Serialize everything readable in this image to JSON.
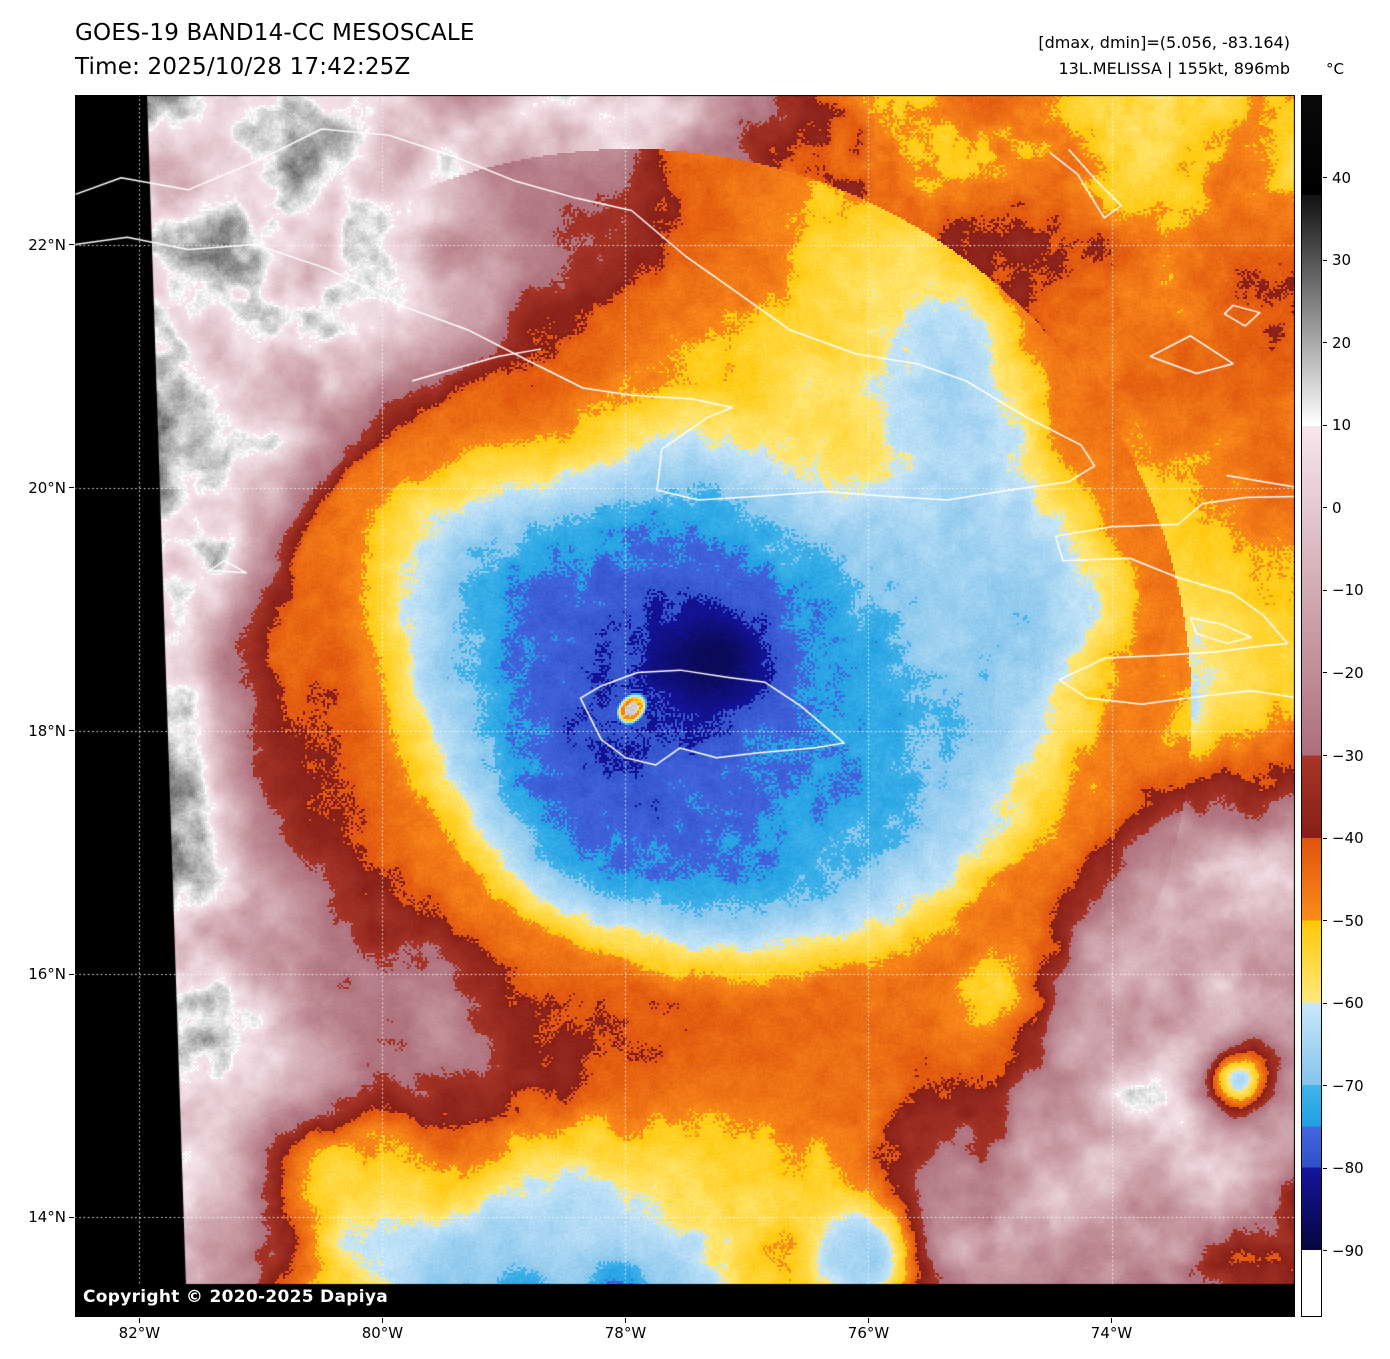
{
  "header": {
    "title_line1": "GOES-19 BAND14-CC MESOSCALE",
    "title_line2": "Time: 2025/10/28 17:42:25Z",
    "info_line1": "[dmax, dmin]=(5.056, -83.164)",
    "info_line2": "13L.MELISSA | 155kt, 896mb"
  },
  "readout": {
    "dmax": 5.056,
    "dmin": -83.164
  },
  "storm": {
    "id": "13L",
    "name": "MELISSA",
    "intensity_kt": 155,
    "pressure_mb": 896,
    "center_lon_w": 77.95,
    "center_lat_n": 18.18
  },
  "map": {
    "copyright": "Copyright © 2020-2025 Dapiya",
    "lat_labels": [
      "22°N",
      "20°N",
      "18°N",
      "16°N",
      "14°N"
    ],
    "lat_values": [
      22,
      20,
      18,
      16,
      14
    ],
    "lon_labels": [
      "82°W",
      "80°W",
      "78°W",
      "76°W",
      "74°W"
    ],
    "lon_values": [
      82,
      80,
      78,
      76,
      74
    ],
    "extent": {
      "lon_west": 82.53,
      "lon_east": 72.49,
      "lat_north": 23.23,
      "lat_south": 13.18
    }
  },
  "colorbar": {
    "unit": "°C",
    "tick_labels": [
      "40",
      "30",
      "20",
      "10",
      "0",
      "−10",
      "−20",
      "−30",
      "−40",
      "−50",
      "−60",
      "−70",
      "−80",
      "−90"
    ],
    "tick_values": [
      40,
      30,
      20,
      10,
      0,
      -10,
      -20,
      -30,
      -40,
      -50,
      -60,
      -70,
      -80,
      -90
    ],
    "top_value": 50,
    "bottom_value": -98,
    "palette": [
      {
        "from": 50,
        "to": 38,
        "c1": "#0a0a0a",
        "c2": "#000000"
      },
      {
        "from": 38,
        "to": 10,
        "c1": "#111111",
        "c2": "#ffffff"
      },
      {
        "from": 10,
        "to": -30,
        "c1": "#f7e6ec",
        "c2": "#ad6f7b"
      },
      {
        "from": -30,
        "to": -40,
        "c1": "#a83527",
        "c2": "#871f18"
      },
      {
        "from": -40,
        "to": -50,
        "c1": "#df530e",
        "c2": "#fb8c1a"
      },
      {
        "from": -50,
        "to": -60,
        "c1": "#ffc706",
        "c2": "#ffe97e"
      },
      {
        "from": -60,
        "to": -70,
        "c1": "#cbe7f9",
        "c2": "#84c4ec"
      },
      {
        "from": -70,
        "to": -75,
        "c1": "#44b4ea",
        "c2": "#1f9fe2"
      },
      {
        "from": -75,
        "to": -80,
        "c1": "#4467df",
        "c2": "#2f50c8"
      },
      {
        "from": -80,
        "to": -90,
        "c1": "#14149e",
        "c2": "#06063f"
      },
      {
        "from": -90,
        "to": -98,
        "c1": "#ffffff",
        "c2": "#ffffff"
      }
    ]
  }
}
